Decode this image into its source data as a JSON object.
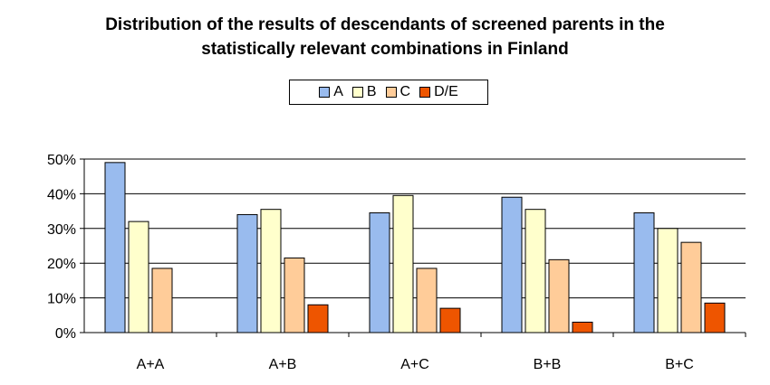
{
  "chart_data": {
    "type": "bar",
    "title_line1": "Distribution of the results of descendants of screened parents in the",
    "title_line2": "statistically relevant combinations in Finland",
    "categories": [
      "A+A",
      "A+B",
      "A+C",
      "B+B",
      "B+C"
    ],
    "series": [
      {
        "name": "A",
        "color": "#99bbee",
        "values": [
          49,
          34,
          34.5,
          39,
          34.5
        ]
      },
      {
        "name": "B",
        "color": "#ffffcc",
        "values": [
          32,
          35.5,
          39.5,
          35.5,
          30
        ]
      },
      {
        "name": "C",
        "color": "#ffcc99",
        "values": [
          18.5,
          21.5,
          18.5,
          21,
          26
        ]
      },
      {
        "name": "D/E",
        "color": "#ee5500",
        "values": [
          0,
          8,
          7,
          3,
          8.5
        ]
      }
    ],
    "y_ticks": [
      "0%",
      "10%",
      "20%",
      "30%",
      "40%",
      "50%"
    ],
    "ylim": [
      0,
      50
    ],
    "grid": true,
    "legend_position": "top-center"
  }
}
